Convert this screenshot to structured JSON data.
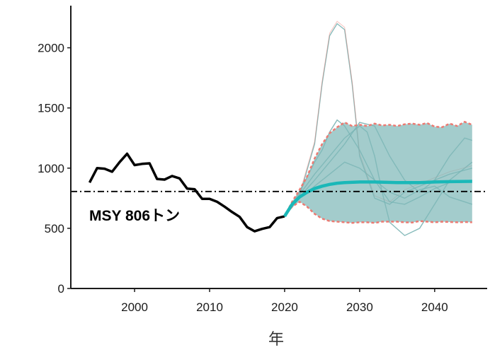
{
  "chart_data": {
    "type": "line",
    "title": "",
    "xlabel": "年",
    "ylabel": "",
    "xlim": [
      1991.5,
      2047
    ],
    "ylim": [
      0,
      2350
    ],
    "x_ticks": [
      2000,
      2010,
      2020,
      2030,
      2040
    ],
    "y_ticks": [
      0,
      500,
      1000,
      1500,
      2000
    ],
    "grid": false,
    "legend": "none",
    "colors": {
      "observed": "#000000",
      "median": "#1ab8b8",
      "band_fill": "#7fb8b8",
      "band_edge": "#ec7a72",
      "sample_paths": "#5fa4a4",
      "msy_line": "#000000"
    },
    "reference_line": {
      "label": "MSY 806トン",
      "y": 806,
      "style": "dash-dot"
    },
    "observed": {
      "x": [
        1994,
        1995,
        1996,
        1997,
        1998,
        1999,
        2000,
        2001,
        2002,
        2003,
        2004,
        2005,
        2006,
        2007,
        2008,
        2009,
        2010,
        2011,
        2012,
        2013,
        2014,
        2015,
        2016,
        2017,
        2018,
        2019,
        2020
      ],
      "y": [
        880,
        1000,
        995,
        970,
        1050,
        1120,
        1025,
        1035,
        1040,
        910,
        905,
        935,
        915,
        830,
        825,
        745,
        745,
        720,
        680,
        635,
        595,
        510,
        475,
        495,
        510,
        585,
        600
      ]
    },
    "median": {
      "x": [
        2020,
        2021,
        2022,
        2023,
        2024,
        2025,
        2026,
        2027,
        2028,
        2030,
        2032,
        2035,
        2038,
        2040,
        2042,
        2045
      ],
      "y": [
        600,
        700,
        760,
        800,
        830,
        850,
        865,
        875,
        880,
        885,
        885,
        880,
        880,
        885,
        888,
        890
      ]
    },
    "band": {
      "x": [
        2020,
        2021,
        2022,
        2023,
        2024,
        2025,
        2026,
        2027,
        2028,
        2029,
        2030,
        2031,
        2032,
        2033,
        2034,
        2035,
        2036,
        2037,
        2038,
        2039,
        2040,
        2041,
        2042,
        2043,
        2044,
        2045
      ],
      "upper": [
        600,
        720,
        820,
        930,
        1080,
        1200,
        1290,
        1340,
        1380,
        1350,
        1360,
        1350,
        1370,
        1355,
        1360,
        1350,
        1365,
        1370,
        1360,
        1375,
        1345,
        1340,
        1370,
        1350,
        1385,
        1360
      ],
      "lower": [
        600,
        680,
        720,
        680,
        620,
        580,
        560,
        555,
        550,
        545,
        550,
        550,
        545,
        555,
        555,
        555,
        550,
        548,
        560,
        555,
        550,
        555,
        552,
        550,
        552,
        550
      ]
    },
    "sample_paths": [
      {
        "x": [
          2020,
          2022,
          2024,
          2025,
          2026,
          2027,
          2028,
          2029,
          2030,
          2032,
          2034,
          2036,
          2038,
          2040,
          2042,
          2045
        ],
        "y": [
          600,
          770,
          1200,
          1700,
          2100,
          2200,
          2150,
          1700,
          1100,
          750,
          700,
          800,
          850,
          900,
          950,
          1000
        ]
      },
      {
        "x": [
          2020,
          2022,
          2024,
          2025,
          2026,
          2027,
          2028,
          2030,
          2032,
          2034,
          2036,
          2038,
          2040,
          2042,
          2045
        ],
        "y": [
          600,
          800,
          1050,
          1150,
          1300,
          1400,
          1350,
          1150,
          900,
          720,
          700,
          760,
          830,
          880,
          900
        ]
      },
      {
        "x": [
          2020,
          2022,
          2024,
          2026,
          2028,
          2030,
          2031,
          2032,
          2033,
          2034,
          2036,
          2038,
          2040,
          2042,
          2045
        ],
        "y": [
          600,
          780,
          950,
          1100,
          1250,
          1350,
          1300,
          1100,
          800,
          550,
          440,
          500,
          700,
          900,
          1050
        ]
      },
      {
        "x": [
          2020,
          2022,
          2024,
          2026,
          2028,
          2030,
          2032,
          2034,
          2036,
          2038,
          2040,
          2042,
          2044,
          2045
        ],
        "y": [
          600,
          760,
          900,
          1050,
          1200,
          1380,
          1350,
          1100,
          900,
          800,
          900,
          1100,
          1250,
          1230
        ]
      },
      {
        "x": [
          2020,
          2022,
          2024,
          2026,
          2028,
          2030,
          2032,
          2034,
          2036,
          2038,
          2040,
          2042,
          2045
        ],
        "y": [
          600,
          750,
          850,
          950,
          1050,
          1000,
          900,
          800,
          750,
          820,
          850,
          760,
          700
        ]
      }
    ]
  }
}
